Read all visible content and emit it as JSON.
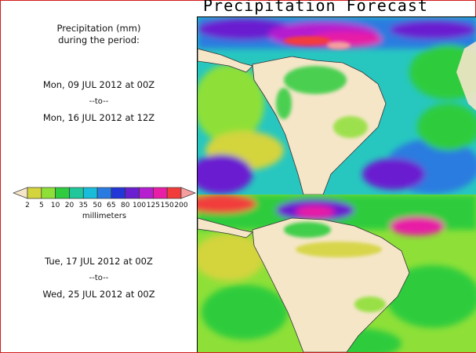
{
  "title": "Precipitation Forecast",
  "period1": {
    "label_line1": "Precipitation (mm)",
    "label_line2": "during the period:",
    "start": "Mon, 09 JUL 2012 at 00Z",
    "separator": "--to--",
    "end": "Mon, 16 JUL 2012 at 12Z"
  },
  "period2": {
    "start": "Tue, 17 JUL 2012 at 00Z",
    "separator": "--to--",
    "end": "Wed, 25 JUL 2012 at 00Z"
  },
  "legend": {
    "ticks": [
      "2",
      "5",
      "10",
      "20",
      "35",
      "50",
      "65",
      "80",
      "100",
      "125",
      "150",
      "200"
    ],
    "colors": [
      "#f5e6c8",
      "#d4d43c",
      "#8ee038",
      "#2ecc3e",
      "#1fc79a",
      "#19bcd9",
      "#2a7be0",
      "#2336d8",
      "#6a1fd0",
      "#b51fd0",
      "#e81fa6",
      "#f23c3c",
      "#f59ea0"
    ],
    "unit": "millimeters"
  },
  "maps": [
    {
      "name": "forecast-map-period-1"
    },
    {
      "name": "forecast-map-period-2"
    }
  ]
}
